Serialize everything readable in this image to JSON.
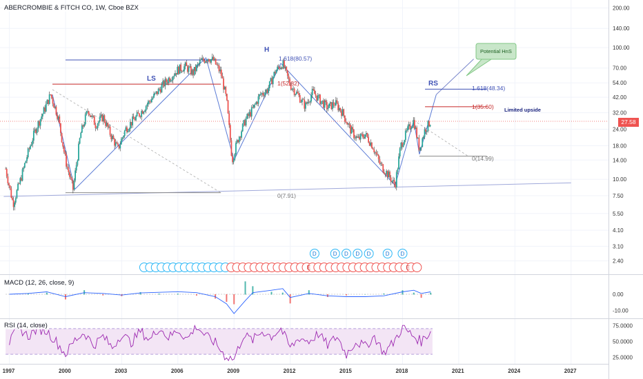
{
  "header": {
    "title": "ABERCROMBIE & FITCH CO, 1W, Cboe BZX"
  },
  "macd": {
    "title": "MACD (12, 26, close, 9)",
    "ticks": [
      "0.00",
      "-10.00"
    ]
  },
  "rsi": {
    "title": "RSI (14, close)",
    "ticks": [
      "75.0000",
      "50.0000",
      "25.0000"
    ]
  },
  "colors": {
    "candle_up": "#26a69a",
    "candle_down": "#ef5350",
    "pattern_line": "#5b7bd5",
    "rsi_line": "#9c27b0",
    "rsi_band": "#f3e5f5",
    "price_line": "#ef5350"
  },
  "last_price": "27.58",
  "annotations": {
    "ls": "LS",
    "h": "H",
    "rs": "RS",
    "fib_h_1618": "1.618(80.57)",
    "fib_h_1": "1(52.82)",
    "fib_h_0": "0(7.91)",
    "fib_rs_1618": "1.618(48.34)",
    "fib_rs_1": "1(35.60)",
    "fib_rs_0": "0(14.99)",
    "limited_upside": "Limited upside",
    "callout": "Potential HnS"
  },
  "markers": {
    "d": "D",
    "e": "E"
  },
  "chart_data": [
    {
      "type": "line",
      "title": "ABERCROMBIE & FITCH CO, 1W, Cboe BZX",
      "yscale": "log",
      "ylim": [
        1.9,
        230
      ],
      "y_ticks": [
        "200.00",
        "140.00",
        "100.00",
        "70.00",
        "54.00",
        "42.00",
        "32.00",
        "24.00",
        "18.00",
        "14.00",
        "10.00",
        "7.50",
        "5.50",
        "4.10",
        "3.10",
        "2.40"
      ],
      "x_ticks": [
        "1997",
        "2000",
        "2003",
        "2006",
        "2009",
        "2012",
        "2015",
        "2018",
        "2021",
        "2024",
        "2027"
      ],
      "xlim": [
        1996.5,
        2029.0
      ],
      "grid": true,
      "series": [
        {
          "x": [
            1996.8,
            1997.2,
            1997.6,
            1998.0,
            1998.4,
            1998.8,
            1999.2,
            1999.6,
            2000.0,
            2000.4,
            2000.8,
            2001.2,
            2001.6,
            2002.0,
            2002.4,
            2002.8,
            2003.2,
            2003.6,
            2004.0,
            2004.4,
            2004.8,
            2005.2,
            2005.6,
            2006.0,
            2006.4,
            2006.8,
            2007.2,
            2007.6,
            2007.9,
            2008.3,
            2008.6,
            2008.9,
            2009.2,
            2009.6,
            2010.0,
            2010.4,
            2010.8,
            2011.2,
            2011.6,
            2012.0,
            2012.4,
            2012.8,
            2013.2,
            2013.6,
            2014.0,
            2014.4,
            2014.8,
            2015.2,
            2015.6,
            2016.0,
            2016.4,
            2016.8,
            2017.2,
            2017.6,
            2017.9,
            2018.3,
            2018.6,
            2018.9,
            2019.2,
            2019.5
          ],
          "y": [
            12.0,
            6.5,
            10.0,
            16.0,
            24.0,
            32.0,
            44.0,
            30.0,
            14.0,
            8.4,
            22.0,
            34.0,
            26.0,
            30.0,
            22.0,
            17.0,
            24.0,
            28.0,
            32.0,
            38.0,
            44.0,
            52.0,
            60.0,
            68.0,
            72.0,
            64.0,
            78.0,
            84.0,
            80.0,
            64.0,
            40.0,
            14.0,
            20.0,
            28.0,
            34.0,
            44.0,
            48.0,
            66.0,
            76.0,
            52.0,
            44.0,
            36.0,
            46.0,
            40.0,
            35.0,
            38.0,
            32.0,
            24.0,
            20.0,
            22.0,
            18.0,
            13.0,
            11.0,
            9.0,
            18.0,
            24.0,
            28.0,
            17.0,
            24.0,
            27.58
          ]
        }
      ]
    },
    {
      "type": "line",
      "title": "MACD (12, 26, close, 9)",
      "ylim": [
        -15,
        12
      ],
      "series": [
        {
          "x": [
            1997.0,
            1998.0,
            1999.0,
            2000.0,
            2001.0,
            2002.0,
            2003.0,
            2004.0,
            2005.0,
            2006.0,
            2007.0,
            2008.0,
            2008.6,
            2009.0,
            2009.6,
            2010.0,
            2011.0,
            2011.6,
            2012.0,
            2013.0,
            2014.0,
            2015.0,
            2016.0,
            2017.0,
            2018.0,
            2018.6,
            2019.0,
            2019.5
          ],
          "y": [
            0.0,
            0.5,
            1.5,
            -1.5,
            1.0,
            0.5,
            -0.5,
            0.8,
            1.2,
            1.6,
            1.0,
            -1.5,
            -6.0,
            -12.0,
            -4.0,
            1.0,
            2.5,
            3.5,
            -2.0,
            0.5,
            -1.0,
            -1.5,
            -1.5,
            -1.0,
            1.5,
            2.5,
            0.5,
            1.5
          ]
        }
      ]
    },
    {
      "type": "line",
      "title": "RSI (14, close)",
      "ylim": [
        15,
        85
      ],
      "series": [
        {
          "x": [
            1997.0,
            1997.5,
            1998.0,
            1998.5,
            1999.0,
            1999.5,
            2000.0,
            2000.5,
            2001.0,
            2001.5,
            2002.0,
            2002.5,
            2003.0,
            2003.5,
            2004.0,
            2004.5,
            2005.0,
            2005.5,
            2006.0,
            2006.5,
            2007.0,
            2007.5,
            2008.0,
            2008.5,
            2009.0,
            2009.5,
            2010.0,
            2010.5,
            2011.0,
            2011.5,
            2012.0,
            2012.5,
            2013.0,
            2013.5,
            2014.0,
            2014.5,
            2015.0,
            2015.5,
            2016.0,
            2016.5,
            2017.0,
            2017.5,
            2018.0,
            2018.5,
            2019.0,
            2019.5
          ],
          "y": [
            48,
            72,
            58,
            70,
            66,
            50,
            30,
            52,
            64,
            44,
            58,
            40,
            62,
            48,
            66,
            52,
            72,
            56,
            68,
            54,
            74,
            58,
            48,
            28,
            22,
            60,
            52,
            66,
            58,
            70,
            40,
            56,
            50,
            62,
            44,
            58,
            30,
            50,
            42,
            58,
            32,
            48,
            72,
            60,
            50,
            66
          ]
        }
      ]
    }
  ]
}
